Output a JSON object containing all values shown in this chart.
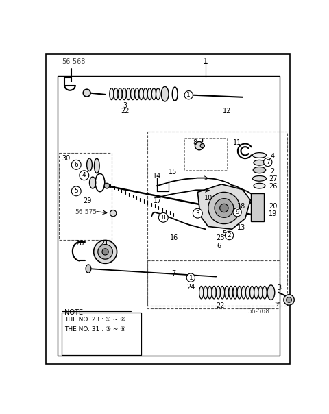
{
  "bg_color": "#ffffff",
  "line_color": "#000000",
  "gray_color": "#888888",
  "light_gray": "#cccccc",
  "dark_gray": "#444444",
  "note_lines": [
    "NOTE",
    "THE NO. 23 : ① ~ ②",
    "THE NO. 31 : ③ ~ ⑨"
  ]
}
